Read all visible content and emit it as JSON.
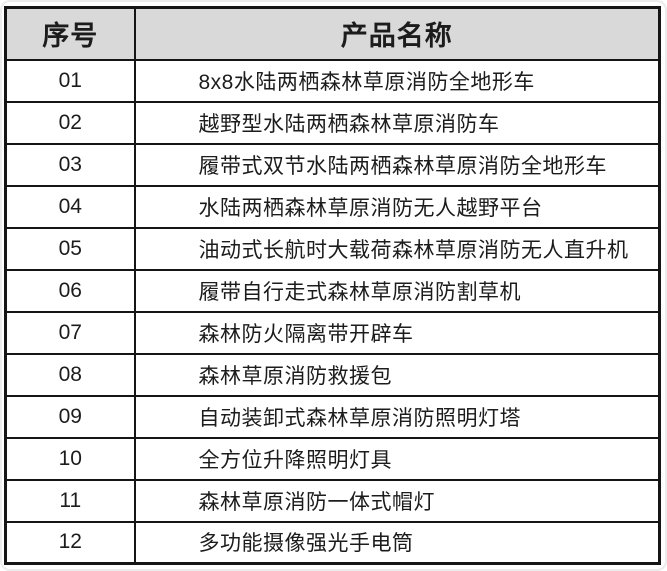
{
  "colors": {
    "header_bg": "#d9d9d9",
    "border": "#151515",
    "text": "#1c1c1c",
    "row_bg": "#ffffff"
  },
  "table": {
    "columns": [
      {
        "label": "序号"
      },
      {
        "label": "产品名称"
      }
    ],
    "rows": [
      {
        "index": "01",
        "name": "8x8水陆两栖森林草原消防全地形车"
      },
      {
        "index": "02",
        "name": "越野型水陆两栖森林草原消防车"
      },
      {
        "index": "03",
        "name": "履带式双节水陆两栖森林草原消防全地形车"
      },
      {
        "index": "04",
        "name": "水陆两栖森林草原消防无人越野平台"
      },
      {
        "index": "05",
        "name": "油动式长航时大载荷森林草原消防无人直升机"
      },
      {
        "index": "06",
        "name": "履带自行走式森林草原消防割草机"
      },
      {
        "index": "07",
        "name": "森林防火隔离带开辟车"
      },
      {
        "index": "08",
        "name": "森林草原消防救援包"
      },
      {
        "index": "09",
        "name": "自动装卸式森林草原消防照明灯塔"
      },
      {
        "index": "10",
        "name": "全方位升降照明灯具"
      },
      {
        "index": "11",
        "name": "森林草原消防一体式帽灯"
      },
      {
        "index": "12",
        "name": "多功能摄像强光手电筒"
      }
    ]
  }
}
